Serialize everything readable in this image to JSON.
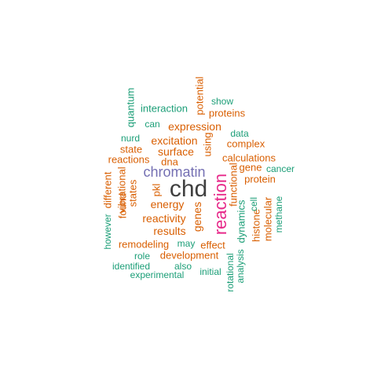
{
  "palette": {
    "dark": "#404040",
    "purple": "#7570B3",
    "magenta": "#E7298A",
    "orange": "#D95F02",
    "teal": "#1B9E77"
  },
  "words": [
    {
      "text": "chd",
      "color": "dark"
    },
    {
      "text": "reaction",
      "color": "magenta"
    },
    {
      "text": "chromatin",
      "color": "purple"
    },
    {
      "text": "energy",
      "color": "orange"
    },
    {
      "text": "reactivity",
      "color": "orange"
    },
    {
      "text": "results",
      "color": "orange"
    },
    {
      "text": "genes",
      "color": "orange"
    },
    {
      "text": "surface",
      "color": "orange"
    },
    {
      "text": "expression",
      "color": "orange"
    },
    {
      "text": "excitation",
      "color": "orange"
    },
    {
      "text": "calculations",
      "color": "orange"
    },
    {
      "text": "development",
      "color": "orange"
    },
    {
      "text": "remodeling",
      "color": "orange"
    },
    {
      "text": "functional",
      "color": "orange"
    },
    {
      "text": "using",
      "color": "orange"
    },
    {
      "text": "pkl",
      "color": "orange"
    },
    {
      "text": "dna",
      "color": "orange"
    },
    {
      "text": "state",
      "color": "orange"
    },
    {
      "text": "reactions",
      "color": "orange"
    },
    {
      "text": "complex",
      "color": "orange"
    },
    {
      "text": "protein",
      "color": "orange"
    },
    {
      "text": "gene",
      "color": "orange"
    },
    {
      "text": "proteins",
      "color": "orange"
    },
    {
      "text": "potential",
      "color": "orange"
    },
    {
      "text": "effect",
      "color": "orange"
    },
    {
      "text": "histone",
      "color": "orange"
    },
    {
      "text": "molecular",
      "color": "orange"
    },
    {
      "text": "found",
      "color": "orange"
    },
    {
      "text": "states",
      "color": "orange"
    },
    {
      "text": "vibrational",
      "color": "orange"
    },
    {
      "text": "different",
      "color": "orange"
    },
    {
      "text": "dynamics",
      "color": "teal"
    },
    {
      "text": "interaction",
      "color": "teal"
    },
    {
      "text": "quantum",
      "color": "teal"
    },
    {
      "text": "show",
      "color": "teal"
    },
    {
      "text": "can",
      "color": "teal"
    },
    {
      "text": "nurd",
      "color": "teal"
    },
    {
      "text": "data",
      "color": "teal"
    },
    {
      "text": "cancer",
      "color": "teal"
    },
    {
      "text": "cell",
      "color": "teal"
    },
    {
      "text": "methane",
      "color": "teal"
    },
    {
      "text": "however",
      "color": "teal"
    },
    {
      "text": "may",
      "color": "teal"
    },
    {
      "text": "role",
      "color": "teal"
    },
    {
      "text": "identified",
      "color": "teal"
    },
    {
      "text": "also",
      "color": "teal"
    },
    {
      "text": "experimental",
      "color": "teal"
    },
    {
      "text": "initial",
      "color": "teal"
    },
    {
      "text": "rotational",
      "color": "teal"
    },
    {
      "text": "analysis",
      "color": "teal"
    }
  ]
}
